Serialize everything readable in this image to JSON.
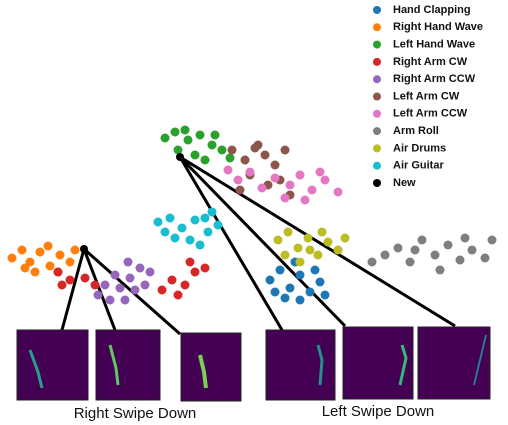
{
  "chart_data": {
    "type": "scatter",
    "xlim": [
      0,
      508
    ],
    "ylim": [
      0,
      200
    ],
    "series": [
      {
        "name": "Hand Clapping",
        "color": "#1f77b4",
        "x": [
          270,
          280,
          290,
          300,
          310,
          320,
          285,
          300,
          275,
          315,
          325,
          295
        ],
        "values": [
          40,
          50,
          32,
          45,
          28,
          38,
          22,
          20,
          28,
          50,
          25,
          58
        ]
      },
      {
        "name": "Right Hand Wave",
        "color": "#ff7f0e",
        "x": [
          12,
          22,
          30,
          40,
          50,
          60,
          70,
          35,
          48,
          25,
          75,
          58
        ],
        "values": [
          62,
          70,
          58,
          68,
          54,
          65,
          58,
          48,
          74,
          52,
          70,
          48
        ]
      },
      {
        "name": "Left Hand Wave",
        "color": "#2ca02c",
        "x": [
          165,
          175,
          188,
          200,
          212,
          222,
          195,
          178,
          205,
          185,
          215,
          230
        ],
        "values": [
          182,
          188,
          180,
          185,
          175,
          170,
          165,
          170,
          160,
          190,
          185,
          162
        ]
      },
      {
        "name": "Right Arm CW",
        "color": "#d62728",
        "x": [
          58,
          70,
          85,
          95,
          162,
          172,
          185,
          195,
          205,
          178,
          62,
          190
        ],
        "values": [
          48,
          40,
          42,
          35,
          30,
          40,
          35,
          48,
          52,
          25,
          35,
          58
        ]
      },
      {
        "name": "Right Arm CCW",
        "color": "#9467bd",
        "x": [
          98,
          110,
          120,
          130,
          140,
          150,
          128,
          135,
          115,
          145,
          105,
          125
        ],
        "values": [
          25,
          20,
          32,
          42,
          52,
          48,
          58,
          30,
          45,
          35,
          35,
          20
        ]
      },
      {
        "name": "Left Arm CW",
        "color": "#8c564b",
        "x": [
          232,
          245,
          255,
          265,
          275,
          285,
          250,
          268,
          240,
          280,
          258,
          290
        ],
        "values": [
          170,
          160,
          172,
          165,
          155,
          170,
          145,
          135,
          130,
          140,
          175,
          125
        ]
      },
      {
        "name": "Left Arm CCW",
        "color": "#e377c2",
        "x": [
          228,
          238,
          250,
          262,
          275,
          290,
          300,
          312,
          325,
          338,
          305,
          285,
          320
        ],
        "values": [
          150,
          140,
          148,
          132,
          142,
          135,
          145,
          130,
          140,
          128,
          120,
          122,
          148
        ]
      },
      {
        "name": "Arm Roll",
        "color": "#7f7f7f",
        "x": [
          372,
          385,
          398,
          410,
          422,
          435,
          448,
          460,
          472,
          485,
          492,
          440,
          415,
          465
        ],
        "values": [
          58,
          65,
          72,
          58,
          80,
          65,
          75,
          60,
          70,
          62,
          80,
          50,
          70,
          82
        ]
      },
      {
        "name": "Air Drums",
        "color": "#bcbd22",
        "x": [
          278,
          288,
          298,
          308,
          318,
          328,
          338,
          300,
          285,
          322,
          310,
          345
        ],
        "values": [
          80,
          88,
          72,
          82,
          65,
          78,
          70,
          58,
          65,
          88,
          70,
          82
        ]
      },
      {
        "name": "Air Guitar",
        "color": "#17becf",
        "x": [
          158,
          170,
          182,
          195,
          208,
          218,
          175,
          190,
          205,
          165,
          200,
          212
        ],
        "values": [
          98,
          102,
          92,
          100,
          88,
          95,
          82,
          80,
          102,
          88,
          75,
          108
        ]
      },
      {
        "name": "New",
        "color": "#000000",
        "x": [
          180,
          84
        ],
        "values": [
          163,
          71
        ]
      }
    ],
    "annotations": [
      "Right Swipe Down",
      "Left Swipe Down"
    ]
  }
}
